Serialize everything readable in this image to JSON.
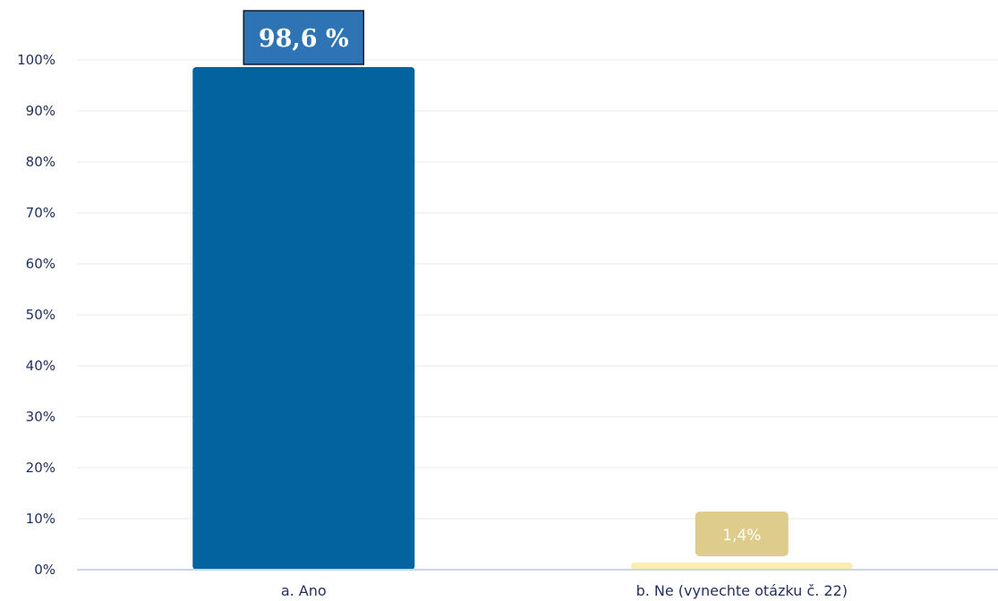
{
  "chart_data": {
    "type": "bar",
    "categories": [
      "a. Ano",
      "b. Ne (vynechte otázku č. 22)"
    ],
    "values": [
      98.6,
      1.4
    ],
    "data_labels": [
      "98,6 %",
      "1,4%"
    ],
    "ylim": [
      0,
      100
    ],
    "yticks": [
      0,
      10,
      20,
      30,
      40,
      50,
      60,
      70,
      80,
      90,
      100
    ],
    "ytick_labels": [
      "0%",
      "10%",
      "20%",
      "30%",
      "40%",
      "50%",
      "60%",
      "70%",
      "80%",
      "90%",
      "100%"
    ],
    "bar_colors": [
      "#02639e",
      "#fbeeb0"
    ],
    "label_box_colors": [
      "#2e74b5",
      "#ddcc8c"
    ],
    "grid": true,
    "legend": "none"
  }
}
